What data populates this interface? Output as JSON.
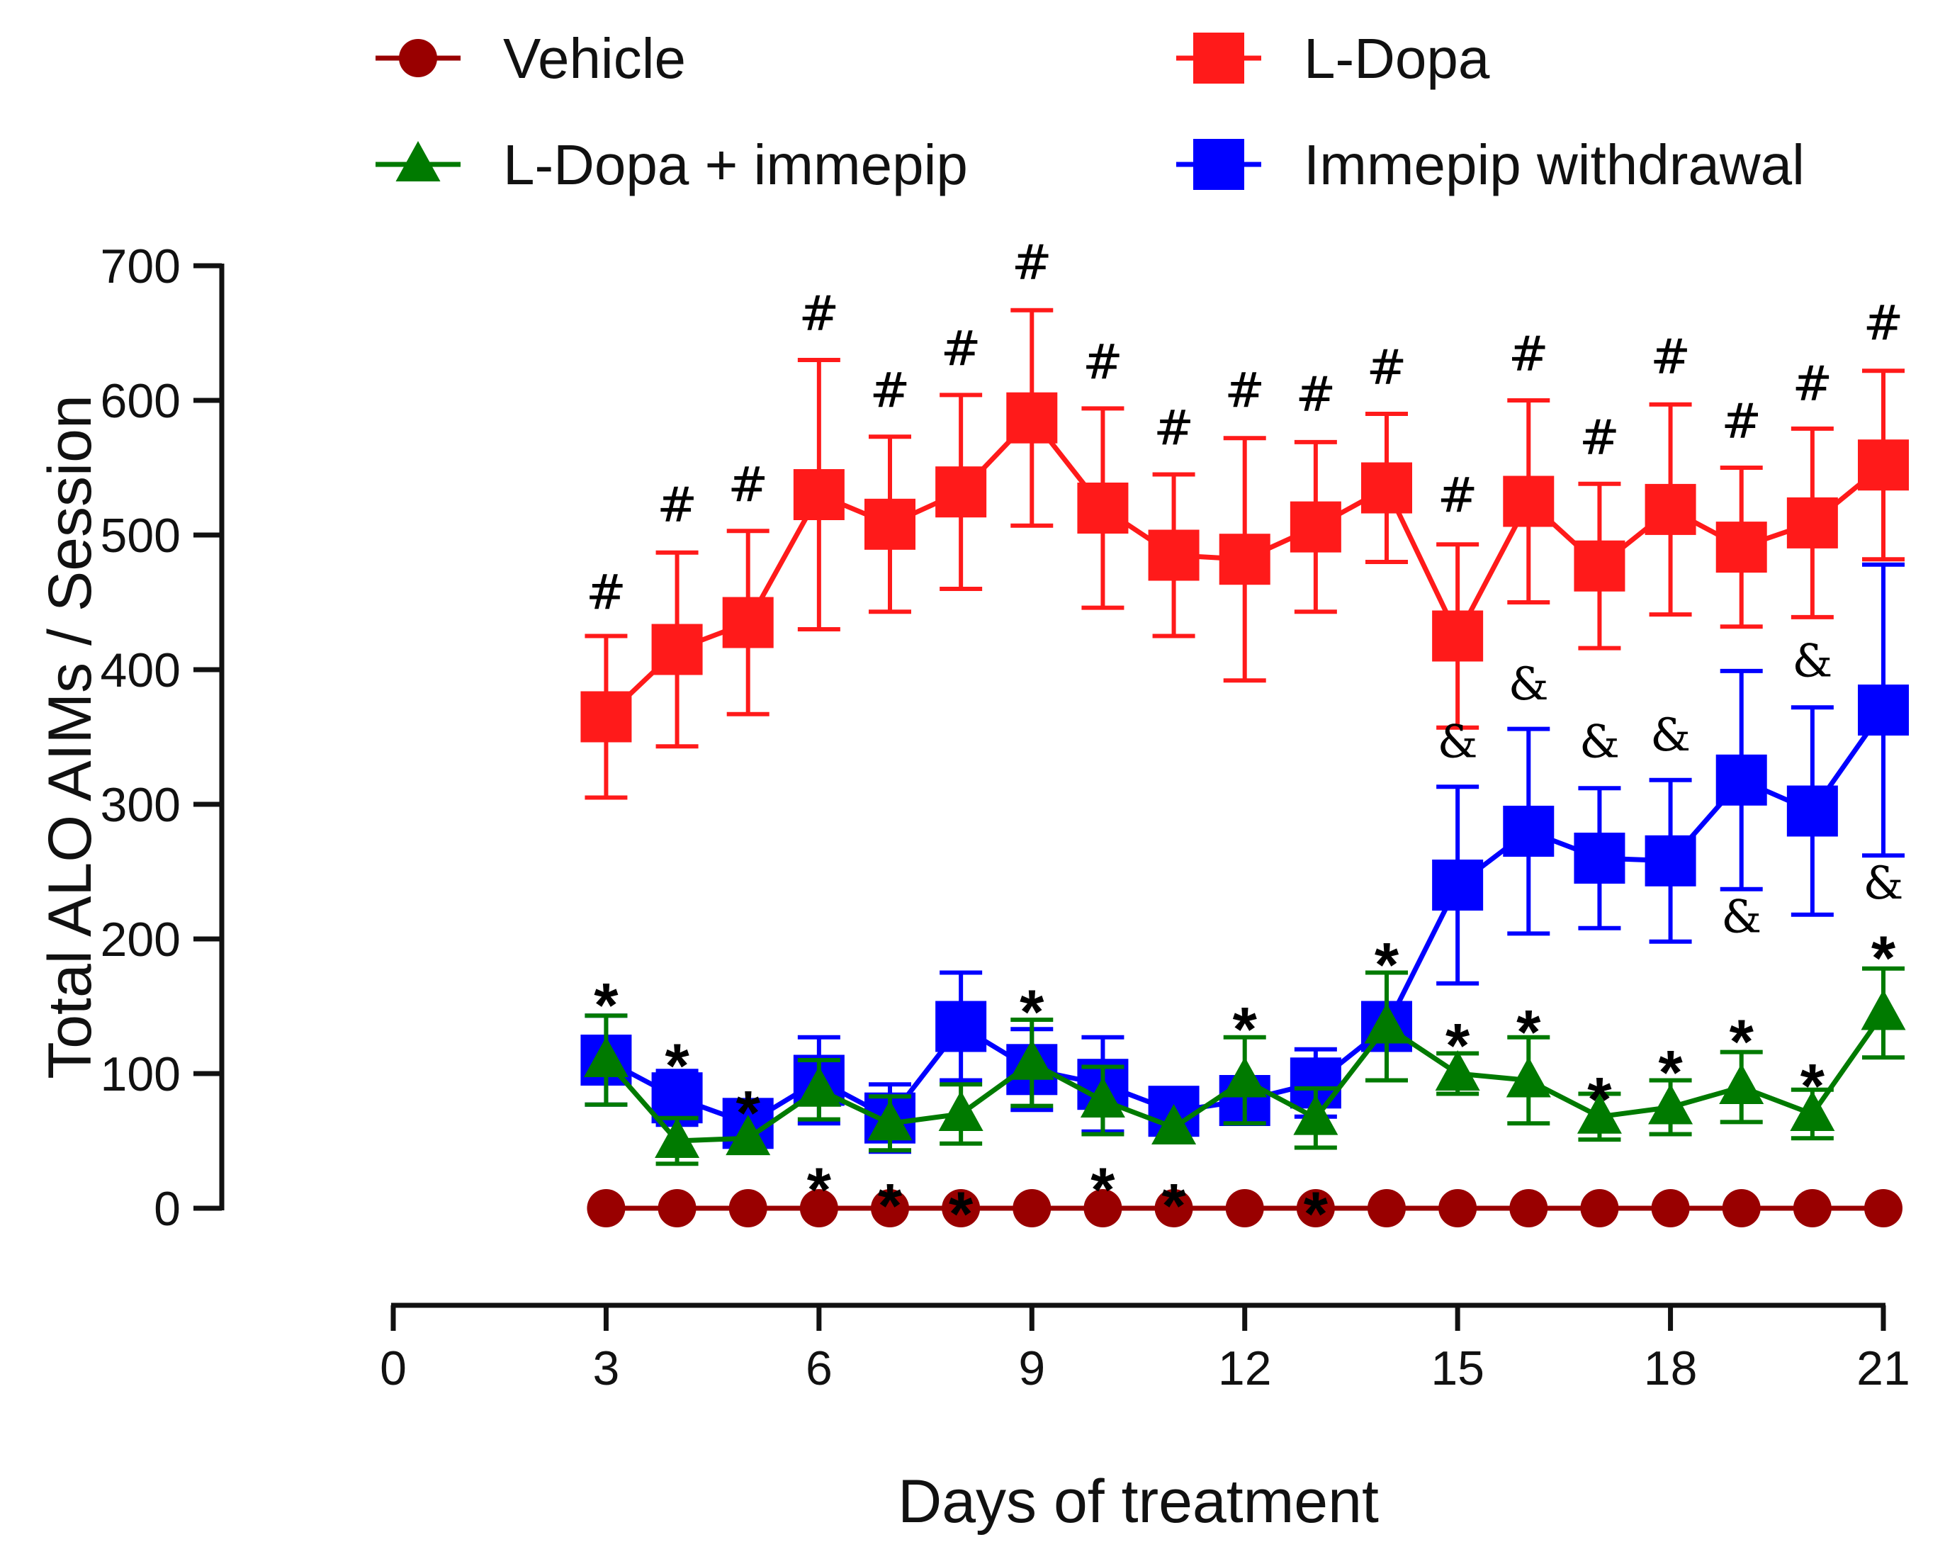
{
  "chart_data": {
    "type": "line",
    "title": "",
    "xlabel": "Days of treatment",
    "ylabel": "Total ALO AIMs / Session",
    "xlim": [
      0,
      21
    ],
    "ylim": [
      0,
      700
    ],
    "xticks": [
      0,
      3,
      6,
      9,
      12,
      15,
      18,
      21
    ],
    "xtick_labels": [
      "0",
      "3",
      "6",
      "9",
      "12",
      "15",
      "18",
      "21"
    ],
    "yticks": [
      0,
      100,
      200,
      300,
      400,
      500,
      600,
      700
    ],
    "ytick_labels": [
      "0",
      "100",
      "200",
      "300",
      "400",
      "500",
      "600",
      "700"
    ],
    "grid": false,
    "legend_position": "top",
    "x": [
      3,
      4,
      5,
      6,
      7,
      8,
      9,
      10,
      11,
      12,
      13,
      14,
      15,
      16,
      17,
      18,
      19,
      20,
      21
    ],
    "series": [
      {
        "name": "Vehicle",
        "color": "#990000",
        "marker": "circle",
        "values": [
          0,
          0,
          0,
          0,
          0,
          0,
          0,
          0,
          0,
          0,
          0,
          0,
          0,
          0,
          0,
          0,
          0,
          0,
          0
        ],
        "errors": [
          0,
          0,
          0,
          0,
          0,
          0,
          0,
          0,
          0,
          0,
          0,
          0,
          0,
          0,
          0,
          0,
          0,
          0,
          0
        ]
      },
      {
        "name": "L-Dopa",
        "color": "#ff1a1a",
        "marker": "square",
        "values": [
          365,
          415,
          435,
          530,
          508,
          532,
          587,
          520,
          485,
          482,
          506,
          535,
          425,
          525,
          477,
          519,
          491,
          509,
          552
        ],
        "errors": [
          60,
          72,
          68,
          100,
          65,
          72,
          80,
          74,
          60,
          90,
          63,
          55,
          68,
          75,
          61,
          78,
          59,
          70,
          70
        ]
      },
      {
        "name": "L-Dopa + immepip",
        "color": "#007a00",
        "marker": "triangle",
        "values": [
          110,
          50,
          52,
          88,
          63,
          70,
          108,
          80,
          60,
          95,
          67,
          135,
          100,
          95,
          68,
          75,
          90,
          70,
          145
        ],
        "errors": [
          33,
          17,
          0,
          22,
          20,
          22,
          32,
          25,
          0,
          32,
          22,
          40,
          15,
          32,
          17,
          20,
          26,
          18,
          33
        ]
      },
      {
        "name": "Immepip withdrawal",
        "color": "#0000ff",
        "marker": "square",
        "values": [
          110,
          82,
          63,
          95,
          67,
          135,
          103,
          92,
          72,
          80,
          93,
          135,
          240,
          280,
          260,
          258,
          318,
          295,
          370
        ],
        "errors": [
          33,
          20,
          0,
          32,
          25,
          40,
          30,
          35,
          0,
          17,
          25,
          0,
          73,
          76,
          52,
          60,
          81,
          77,
          108
        ]
      }
    ],
    "annotations": [
      {
        "x": 3,
        "y": 445,
        "text": "#"
      },
      {
        "x": 4,
        "y": 510,
        "text": "#"
      },
      {
        "x": 5,
        "y": 525,
        "text": "#"
      },
      {
        "x": 6,
        "y": 652,
        "text": "#"
      },
      {
        "x": 7,
        "y": 595,
        "text": "#"
      },
      {
        "x": 8,
        "y": 626,
        "text": "#"
      },
      {
        "x": 9,
        "y": 690,
        "text": "#"
      },
      {
        "x": 10,
        "y": 616,
        "text": "#"
      },
      {
        "x": 11,
        "y": 567,
        "text": "#"
      },
      {
        "x": 12,
        "y": 595,
        "text": "#"
      },
      {
        "x": 13,
        "y": 592,
        "text": "#"
      },
      {
        "x": 14,
        "y": 612,
        "text": "#"
      },
      {
        "x": 15,
        "y": 517,
        "text": "#"
      },
      {
        "x": 16,
        "y": 622,
        "text": "#"
      },
      {
        "x": 17,
        "y": 560,
        "text": "#"
      },
      {
        "x": 18,
        "y": 620,
        "text": "#"
      },
      {
        "x": 19,
        "y": 572,
        "text": "#"
      },
      {
        "x": 20,
        "y": 600,
        "text": "#"
      },
      {
        "x": 21,
        "y": 645,
        "text": "#"
      },
      {
        "x": 15,
        "y": 335,
        "text": "&"
      },
      {
        "x": 16,
        "y": 378,
        "text": "&"
      },
      {
        "x": 17,
        "y": 335,
        "text": "&"
      },
      {
        "x": 18,
        "y": 340,
        "text": "&"
      },
      {
        "x": 19,
        "y": 205,
        "text": "&"
      },
      {
        "x": 20,
        "y": 395,
        "text": "&"
      },
      {
        "x": 21,
        "y": 230,
        "text": "&"
      },
      {
        "x": 3,
        "y": 155,
        "text": "*"
      },
      {
        "x": 4,
        "y": 110,
        "text": "*"
      },
      {
        "x": 5,
        "y": 75,
        "text": "*"
      },
      {
        "x": 6,
        "y": 18,
        "text": "*"
      },
      {
        "x": 7,
        "y": 6,
        "text": "*"
      },
      {
        "x": 8,
        "y": 0,
        "text": "*"
      },
      {
        "x": 9,
        "y": 150,
        "text": "*"
      },
      {
        "x": 10,
        "y": 18,
        "text": "*"
      },
      {
        "x": 11,
        "y": 6,
        "text": "*"
      },
      {
        "x": 12,
        "y": 137,
        "text": "*"
      },
      {
        "x": 13,
        "y": 0,
        "text": "*"
      },
      {
        "x": 14,
        "y": 185,
        "text": "*"
      },
      {
        "x": 15,
        "y": 125,
        "text": "*"
      },
      {
        "x": 16,
        "y": 135,
        "text": "*"
      },
      {
        "x": 17,
        "y": 85,
        "text": "*"
      },
      {
        "x": 18,
        "y": 105,
        "text": "*"
      },
      {
        "x": 19,
        "y": 128,
        "text": "*"
      },
      {
        "x": 20,
        "y": 95,
        "text": "*"
      },
      {
        "x": 21,
        "y": 190,
        "text": "*"
      }
    ]
  }
}
